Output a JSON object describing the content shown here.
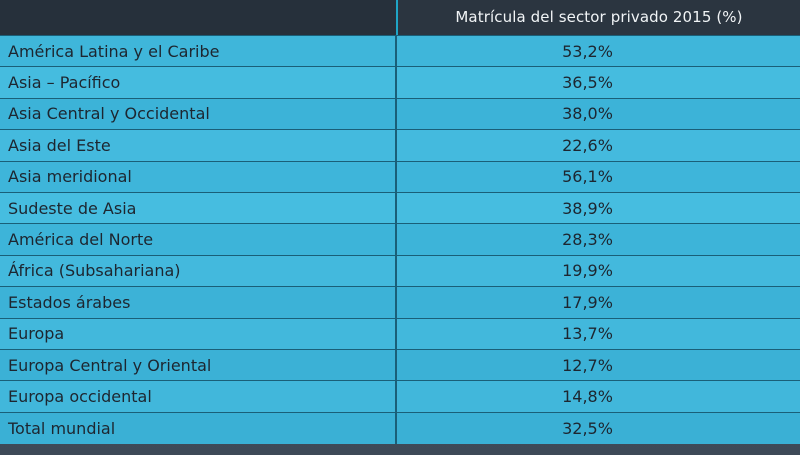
{
  "table": {
    "header": {
      "region_label": "",
      "value_label": "Matrícula del sector privado 2015 (%)"
    },
    "rows": [
      {
        "region": "América Latina y el Caribe",
        "value": "53,2%"
      },
      {
        "region": "Asia – Pacífico",
        "value": "36,5%"
      },
      {
        "region": "Asia Central y Occidental",
        "value": "38,0%"
      },
      {
        "region": "Asia del Este",
        "value": "22,6%"
      },
      {
        "region": "Asia meridional",
        "value": "56,1%"
      },
      {
        "region": "Sudeste de Asia",
        "value": "38,9%"
      },
      {
        "region": "América del Norte",
        "value": "28,3%"
      },
      {
        "region": "África (Subsahariana)",
        "value": "19,9%"
      },
      {
        "region": "Estados árabes",
        "value": "17,9%"
      },
      {
        "region": "Europa",
        "value": "13,7%"
      },
      {
        "region": "Europa Central y Oriental",
        "value": "12,7%"
      },
      {
        "region": "Europa occidental",
        "value": "14,8%"
      },
      {
        "region": "Total mundial",
        "value": "32,5%"
      }
    ]
  },
  "colors": {
    "header_background": "#2b3540",
    "header_text": "#f1f4f6",
    "row_background": "#3fb6da",
    "row_divider": "#1a5f78",
    "row_text": "#1d2630"
  }
}
